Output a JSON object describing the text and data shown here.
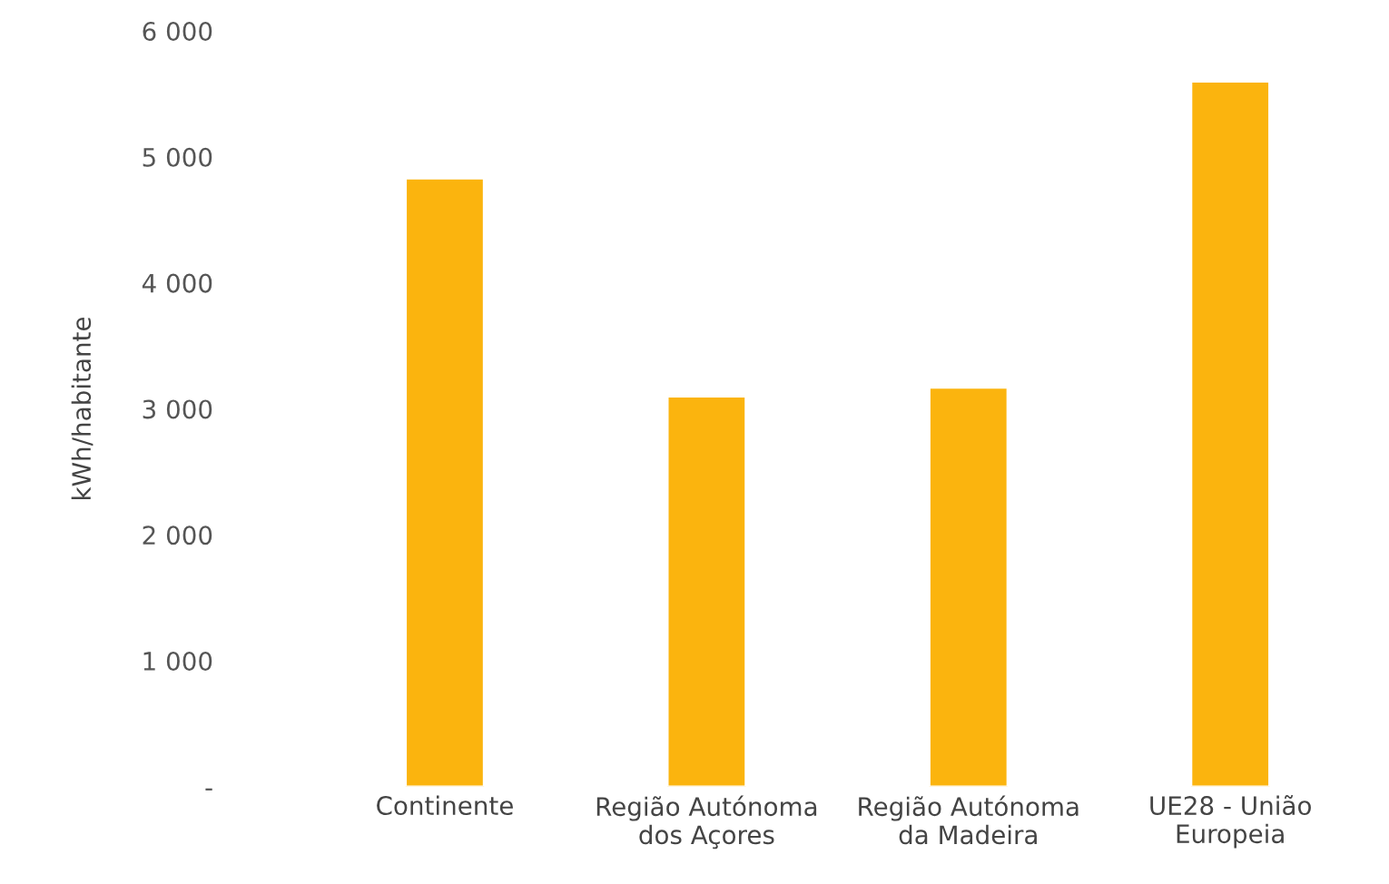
{
  "chart_data": {
    "type": "bar",
    "ylabel": "kWh/habitante",
    "categories": [
      "Continente",
      "Região Autónoma\ndos Açores",
      "Região Autónoma\nda Madeira",
      "UE28 - União\nEuropeia"
    ],
    "values": [
      4830,
      3100,
      3170,
      5600
    ],
    "color": "#fbb40e",
    "ylim": [
      0,
      6000
    ],
    "yticks": [
      {
        "value": 0,
        "label": "-"
      },
      {
        "value": 1000,
        "label": "1 000"
      },
      {
        "value": 2000,
        "label": "2 000"
      },
      {
        "value": 3000,
        "label": "3 000"
      },
      {
        "value": 4000,
        "label": "4 000"
      },
      {
        "value": 5000,
        "label": "5 000"
      },
      {
        "value": 6000,
        "label": "6 000"
      }
    ],
    "grid": false
  }
}
